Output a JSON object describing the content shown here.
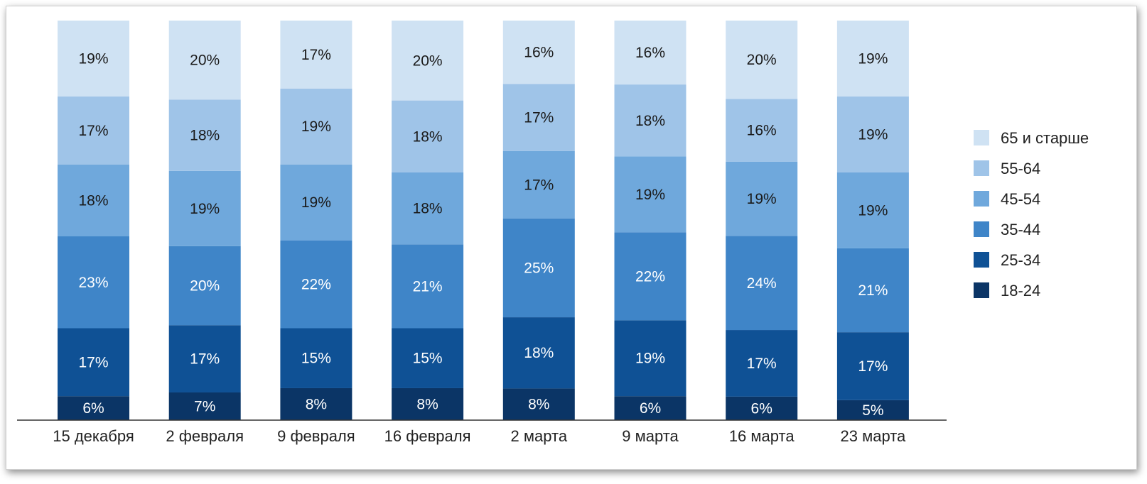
{
  "chart_data": {
    "type": "bar",
    "stacked": true,
    "normalized": true,
    "title": "",
    "xlabel": "",
    "ylabel": "",
    "ylim": [
      0,
      100
    ],
    "grid": false,
    "legend_position": "right",
    "categories": [
      "15 декабря",
      "2 февраля",
      "9 февраля",
      "16 февраля",
      "2 марта",
      "9 марта",
      "16 марта",
      "23 марта"
    ],
    "series": [
      {
        "name": "18-24",
        "color": "#0b3566",
        "label_color": "#ffffff",
        "values": [
          6,
          7,
          8,
          8,
          8,
          6,
          6,
          5
        ]
      },
      {
        "name": "25-34",
        "color": "#0f5195",
        "label_color": "#ffffff",
        "values": [
          17,
          17,
          15,
          15,
          18,
          19,
          17,
          17
        ]
      },
      {
        "name": "35-44",
        "color": "#3f85c8",
        "label_color": "#ffffff",
        "values": [
          23,
          20,
          22,
          21,
          25,
          22,
          24,
          21
        ]
      },
      {
        "name": "45-54",
        "color": "#6fa8dc",
        "label_color": "#1a1a1a",
        "values": [
          18,
          19,
          19,
          18,
          17,
          19,
          19,
          19
        ]
      },
      {
        "name": "55-64",
        "color": "#9fc4e8",
        "label_color": "#1a1a1a",
        "values": [
          17,
          18,
          19,
          18,
          17,
          18,
          16,
          19
        ]
      },
      {
        "name": "65 и старше",
        "color": "#cfe2f3",
        "label_color": "#1a1a1a",
        "values": [
          19,
          20,
          17,
          20,
          16,
          16,
          20,
          19
        ]
      }
    ],
    "data_label_suffix": "%"
  }
}
